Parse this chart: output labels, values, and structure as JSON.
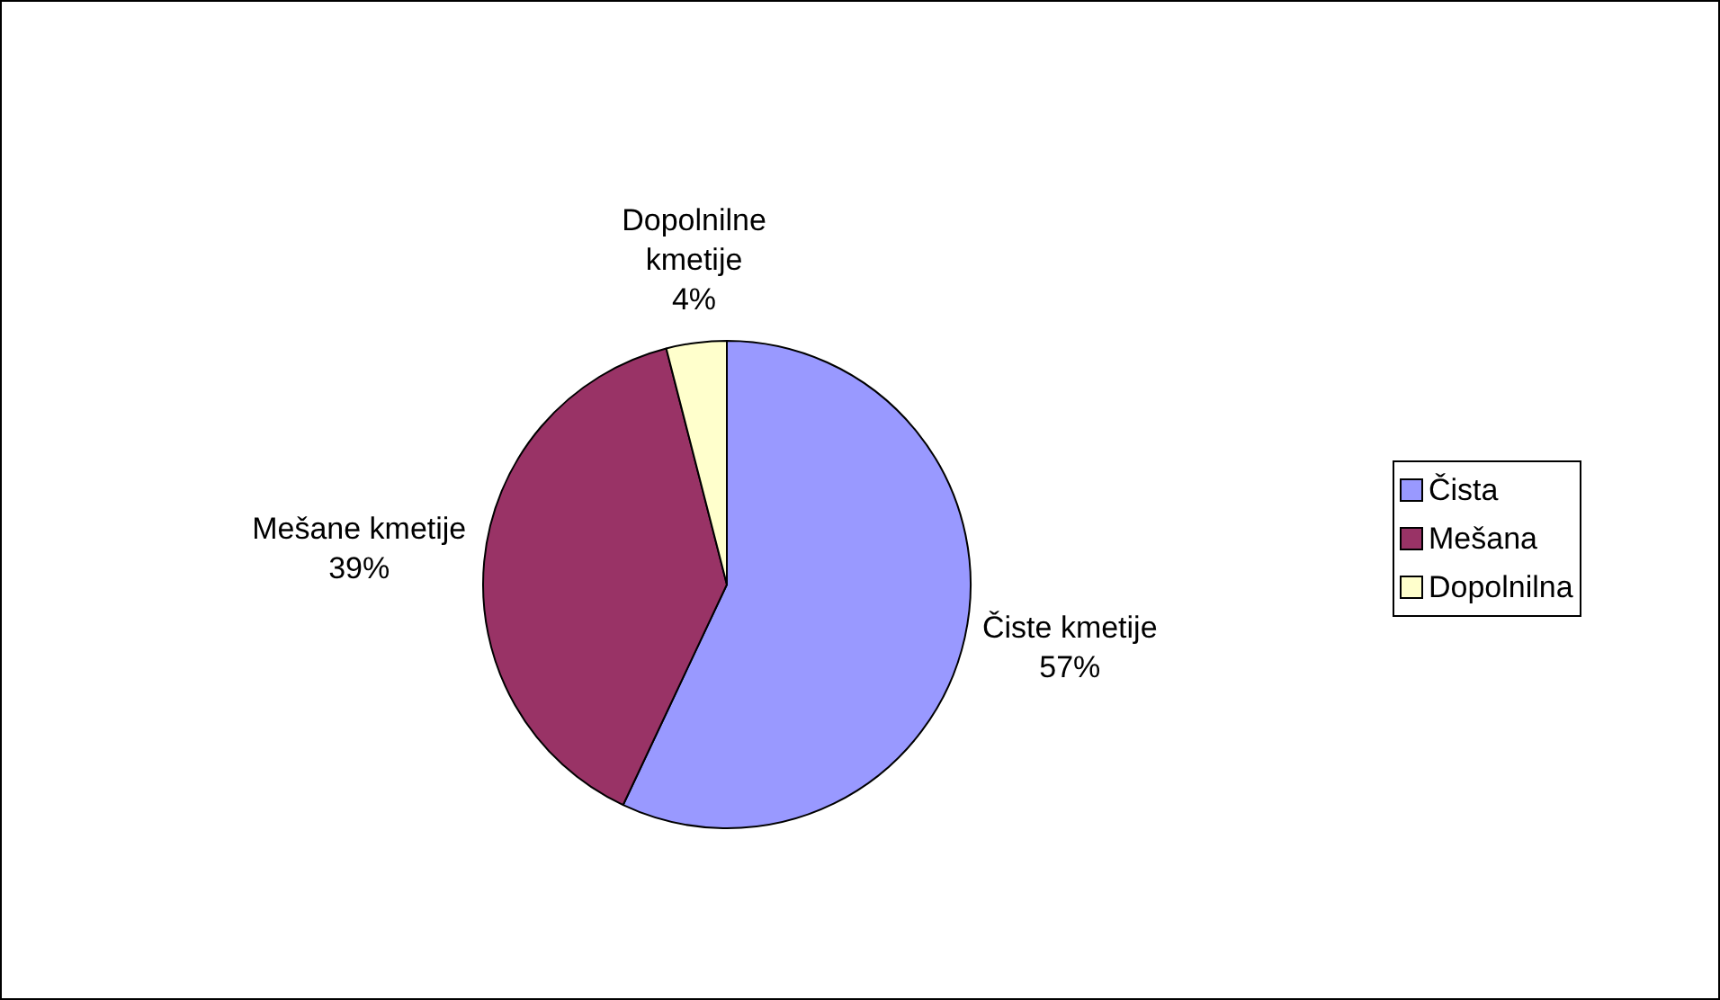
{
  "chart_data": {
    "type": "pie",
    "categories": [
      "Čista",
      "Mešana",
      "Dopolnilna"
    ],
    "values": [
      57,
      39,
      4
    ],
    "colors": [
      "#9999ff",
      "#993366",
      "#ffffcc"
    ],
    "value_labels": [
      "Čiste kmetije\n57%",
      "Mešane kmetije\n39%",
      "Dopolnilne\nkmetije\n4%"
    ],
    "legend": "right"
  }
}
